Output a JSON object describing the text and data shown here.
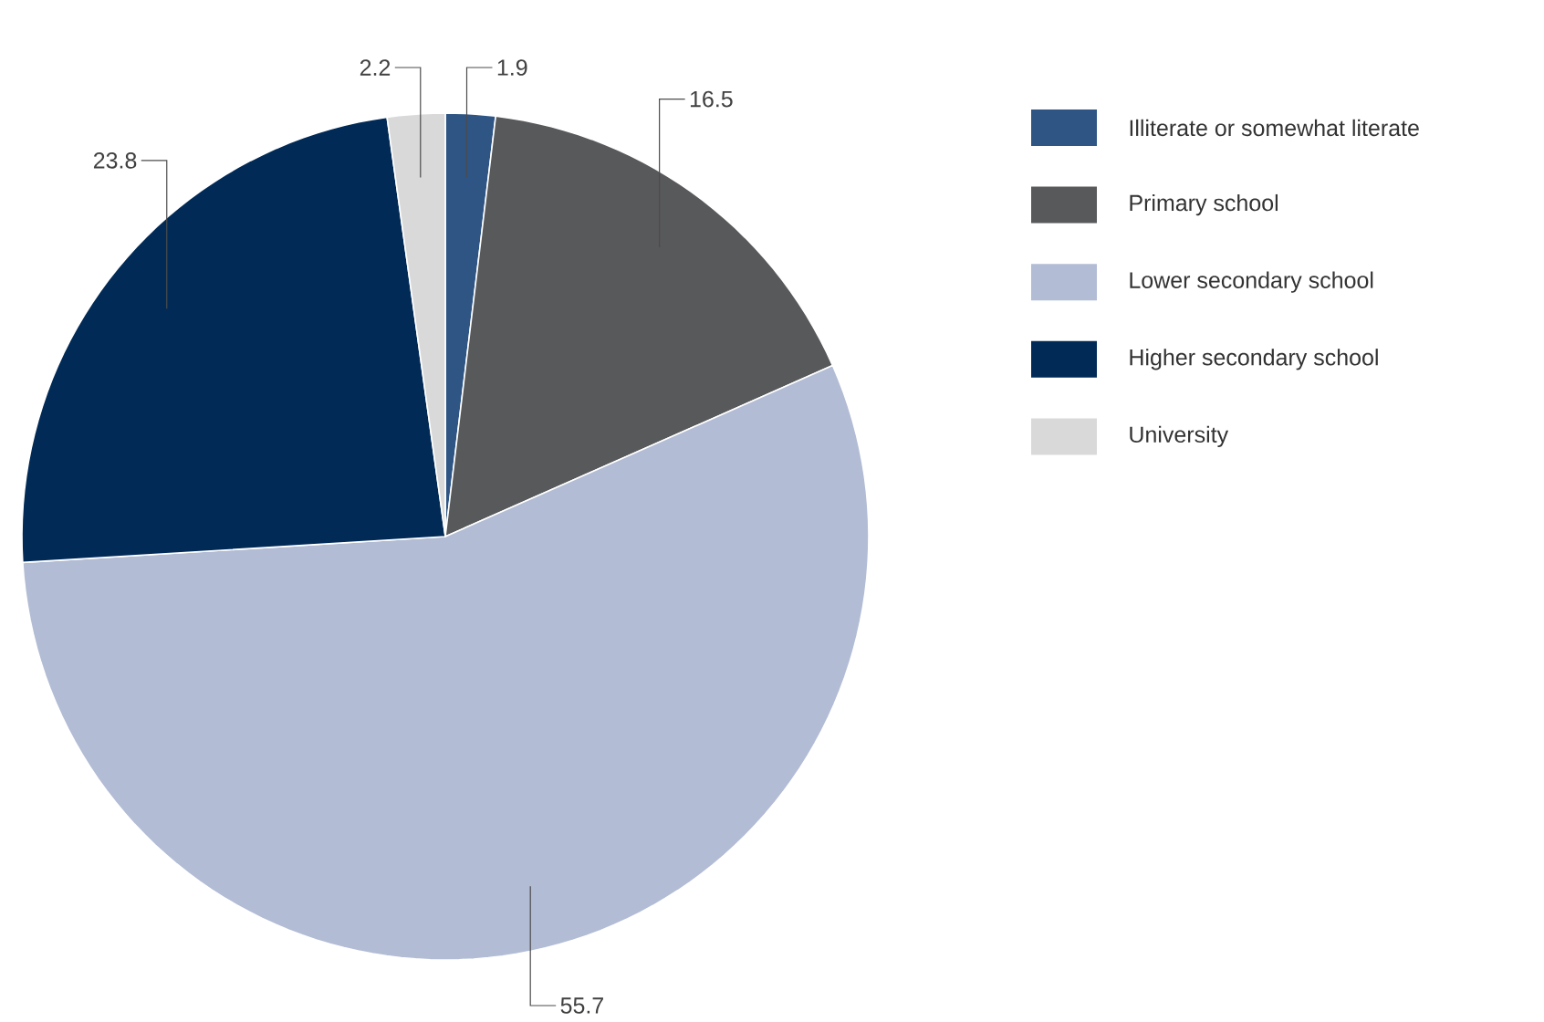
{
  "chart_data": {
    "type": "pie",
    "categories": [
      "Illiterate or somewhat literate",
      "Primary school",
      "Lower secondary school",
      "Higher secondary school",
      "University"
    ],
    "values": [
      1.9,
      16.5,
      55.7,
      23.8,
      2.2
    ],
    "colors": [
      "#2e5584",
      "#58595b",
      "#b2bcd4",
      "#012a57",
      "#d9d9d9"
    ],
    "data_labels": true,
    "legend": "right"
  }
}
